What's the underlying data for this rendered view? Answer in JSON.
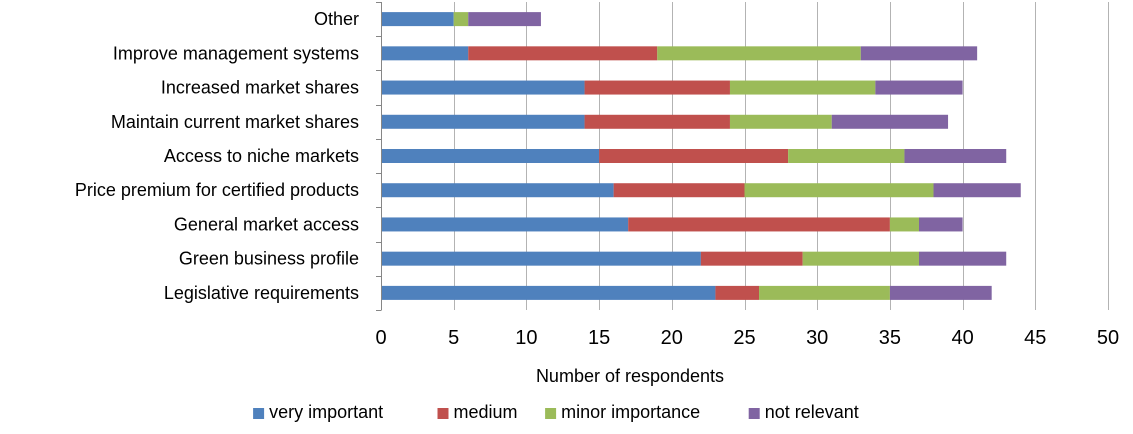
{
  "chart_data": {
    "type": "bar",
    "orientation": "horizontal",
    "stacked": true,
    "title": "",
    "xlabel": "Number of respondents",
    "ylabel": "",
    "xlim": [
      0,
      50
    ],
    "xticks": [
      0,
      5,
      10,
      15,
      20,
      25,
      30,
      35,
      40,
      45,
      50
    ],
    "grid": true,
    "legend_position": "bottom",
    "categories": [
      "Other",
      "Improve management systems",
      "Increased market shares",
      "Maintain current market shares",
      "Access to niche markets",
      "Price premium for certified products",
      "General market access",
      "Green business profile",
      "Legislative requirements"
    ],
    "series": [
      {
        "name": "very important",
        "color": "#4f81bd",
        "values": [
          5,
          6,
          14,
          14,
          15,
          16,
          17,
          22,
          23
        ]
      },
      {
        "name": "medium",
        "color": "#c0504d",
        "values": [
          0,
          13,
          10,
          10,
          13,
          9,
          18,
          7,
          3
        ]
      },
      {
        "name": "minor importance",
        "color": "#9bbb59",
        "values": [
          1,
          14,
          10,
          7,
          8,
          13,
          2,
          8,
          9
        ]
      },
      {
        "name": "not relevant",
        "color": "#8064a2",
        "values": [
          5,
          8,
          6,
          8,
          7,
          6,
          3,
          6,
          7
        ]
      }
    ]
  }
}
